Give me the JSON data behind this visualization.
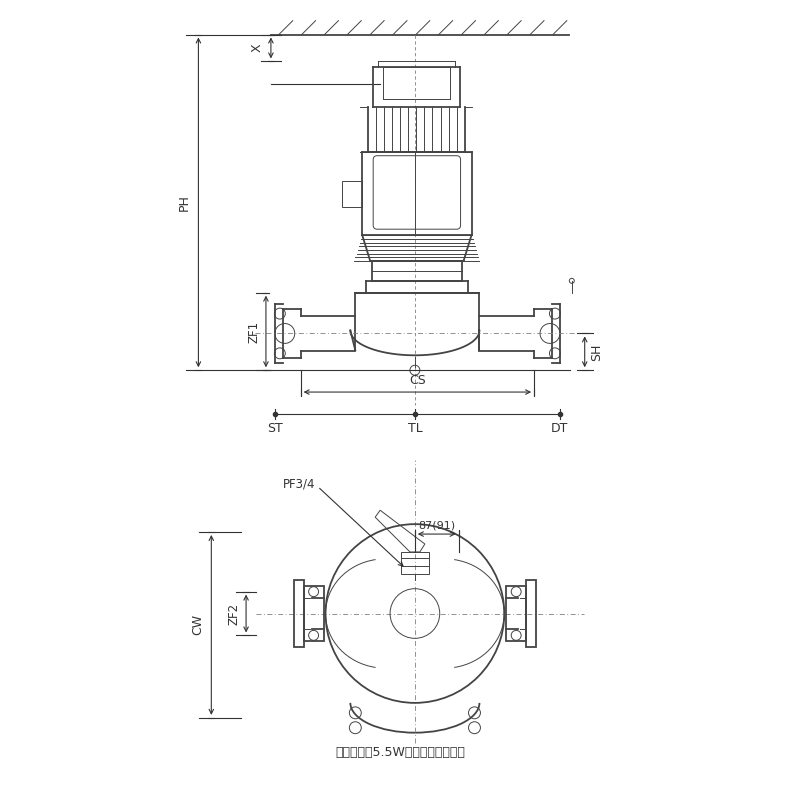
{
  "bg_color": "#ffffff",
  "line_color": "#444444",
  "dim_color": "#333333",
  "note_text": "（　）内は5.5W以上の場合です。",
  "labels": {
    "X": "X",
    "PH": "PH",
    "ZF1": "ZF1",
    "SH": "SH",
    "CS": "CS",
    "ST": "ST",
    "TL": "TL",
    "DT": "DT",
    "PF34": "PF3/4",
    "dim87": "87(91)",
    "CW": "CW",
    "ZF2": "ZF2"
  }
}
